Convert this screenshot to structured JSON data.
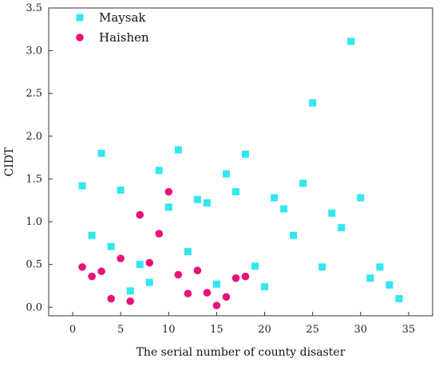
{
  "chart_data": {
    "type": "scatter",
    "title": "",
    "xlabel": "The serial number of county disaster",
    "ylabel": "CIDT",
    "xlim": [
      -2.5,
      37.5
    ],
    "ylim": [
      -0.1,
      3.5
    ],
    "xticks": [
      0,
      5,
      10,
      15,
      20,
      25,
      30,
      35
    ],
    "yticks": [
      0.0,
      0.5,
      1.0,
      1.5,
      2.0,
      2.5,
      3.0,
      3.5
    ],
    "ytick_labels": [
      "0.0",
      "0.5",
      "1.0",
      "1.5",
      "2.0",
      "2.5",
      "3.0",
      "3.5"
    ],
    "grid": false,
    "legend_position": "top-left",
    "series": [
      {
        "name": "Maysak",
        "marker": "square",
        "color": "#33e6f0",
        "points": [
          [
            1,
            1.42
          ],
          [
            2,
            0.84
          ],
          [
            3,
            1.8
          ],
          [
            4,
            0.71
          ],
          [
            5,
            1.37
          ],
          [
            6,
            0.19
          ],
          [
            7,
            0.5
          ],
          [
            8,
            0.29
          ],
          [
            9,
            1.6
          ],
          [
            10,
            1.17
          ],
          [
            11,
            1.84
          ],
          [
            12,
            0.65
          ],
          [
            13,
            1.26
          ],
          [
            14,
            1.22
          ],
          [
            15,
            0.27
          ],
          [
            16,
            1.56
          ],
          [
            17,
            1.35
          ],
          [
            18,
            1.79
          ],
          [
            19,
            0.48
          ],
          [
            20,
            0.24
          ],
          [
            21,
            1.28
          ],
          [
            22,
            1.15
          ],
          [
            23,
            0.84
          ],
          [
            24,
            1.45
          ],
          [
            25,
            2.39
          ],
          [
            26,
            0.47
          ],
          [
            27,
            1.1
          ],
          [
            28,
            0.93
          ],
          [
            29,
            3.11
          ],
          [
            30,
            1.28
          ],
          [
            31,
            0.34
          ],
          [
            32,
            0.47
          ],
          [
            33,
            0.26
          ],
          [
            34,
            0.1
          ]
        ]
      },
      {
        "name": "Haishen",
        "marker": "circle",
        "color": "#e8127a",
        "points": [
          [
            1,
            0.47
          ],
          [
            2,
            0.36
          ],
          [
            3,
            0.42
          ],
          [
            4,
            0.1
          ],
          [
            5,
            0.57
          ],
          [
            6,
            0.07
          ],
          [
            7,
            1.08
          ],
          [
            8,
            0.52
          ],
          [
            9,
            0.86
          ],
          [
            10,
            1.35
          ],
          [
            11,
            0.38
          ],
          [
            12,
            0.16
          ],
          [
            13,
            0.43
          ],
          [
            14,
            0.17
          ],
          [
            15,
            0.02
          ],
          [
            16,
            0.12
          ],
          [
            17,
            0.34
          ],
          [
            18,
            0.36
          ]
        ]
      }
    ]
  }
}
